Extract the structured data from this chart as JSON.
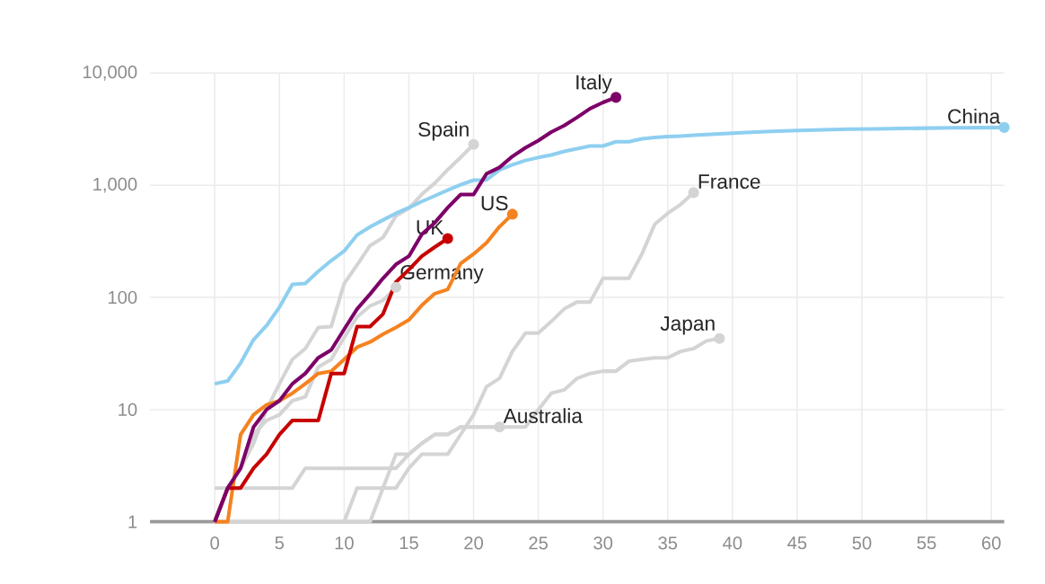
{
  "chart_data": {
    "type": "line",
    "log": "y",
    "grid": true,
    "xlim": [
      -5,
      61
    ],
    "ylim": [
      1,
      10000
    ],
    "xticks": [
      0,
      5,
      10,
      15,
      20,
      25,
      30,
      35,
      40,
      45,
      50,
      55,
      60
    ],
    "yticks": [
      1,
      10,
      100,
      {
        "value": 1000,
        "label": "1,000"
      },
      {
        "value": 10000,
        "label": "10,000"
      }
    ],
    "series": [
      {
        "name": "Spain",
        "color": "#d4d4d4",
        "x": [
          0,
          1,
          2,
          3,
          4,
          5,
          6,
          7,
          8,
          9,
          10,
          11,
          12,
          13,
          14,
          15,
          16,
          17,
          18,
          19,
          20
        ],
        "values": [
          1,
          2,
          3,
          5,
          10,
          17,
          28,
          35,
          54,
          55,
          133,
          195,
          289,
          342,
          533,
          623,
          830,
          1043,
          1375,
          1772,
          2311
        ]
      },
      {
        "name": "Germany",
        "color": "#d4d4d4",
        "x": [
          0,
          1,
          2,
          3,
          4,
          5,
          6,
          7,
          8,
          9,
          10,
          11,
          12,
          13,
          14
        ],
        "values": [
          2,
          2,
          3,
          6,
          8,
          9,
          12,
          13,
          24,
          28,
          44,
          67,
          84,
          94,
          123
        ]
      },
      {
        "name": "France",
        "color": "#d4d4d4",
        "x": [
          10,
          11,
          14,
          15,
          16,
          18,
          19,
          20,
          21,
          22,
          23,
          24,
          25,
          26,
          27,
          28,
          29,
          30,
          32,
          33,
          34,
          35,
          36,
          37
        ],
        "values": [
          1,
          2,
          2,
          3,
          4,
          4,
          6,
          9,
          16,
          19,
          33,
          48,
          48,
          61,
          79,
          91,
          91,
          148,
          148,
          243,
          450,
          562,
          674,
          860
        ]
      },
      {
        "name": "Japan",
        "color": "#d4d4d4",
        "x": [
          0,
          1,
          6,
          7,
          14,
          15,
          16,
          17,
          18,
          19,
          24,
          25,
          26,
          27,
          28,
          29,
          30,
          31,
          32,
          33,
          34,
          35,
          36,
          37,
          38,
          39
        ],
        "values": [
          1,
          2,
          2,
          3,
          3,
          4,
          5,
          6,
          6,
          7,
          7,
          10,
          14,
          15,
          19,
          21,
          22,
          22,
          27,
          28,
          29,
          29,
          33,
          35,
          41,
          43
        ]
      },
      {
        "name": "Australia",
        "color": "#d4d4d4",
        "x": [
          0,
          12,
          13,
          14,
          15,
          16,
          17,
          18,
          19,
          22
        ],
        "values": [
          1,
          1,
          2,
          4,
          4,
          5,
          6,
          6,
          7,
          7
        ]
      },
      {
        "name": "China",
        "color": "#8ecff0",
        "x": [
          0,
          1,
          2,
          3,
          4,
          5,
          6,
          7,
          8,
          9,
          10,
          11,
          12,
          13,
          14,
          15,
          16,
          17,
          18,
          19,
          20,
          21,
          22,
          23,
          24,
          25,
          26,
          27,
          28,
          29,
          30,
          31,
          32,
          33,
          34,
          35,
          36,
          37,
          38,
          39,
          41,
          43,
          45,
          47,
          49,
          51,
          53,
          55,
          57,
          59,
          61
        ],
        "values": [
          17,
          18,
          26,
          42,
          56,
          82,
          131,
          133,
          171,
          213,
          259,
          361,
          425,
          490,
          562,
          632,
          717,
          804,
          904,
          1011,
          1111,
          1117,
          1369,
          1521,
          1663,
          1766,
          1864,
          2003,
          2116,
          2238,
          2238,
          2443,
          2445,
          2595,
          2665,
          2717,
          2746,
          2790,
          2837,
          2872,
          2947,
          3015,
          3072,
          3123,
          3161,
          3180,
          3203,
          3230,
          3249,
          3259,
          3274
        ]
      },
      {
        "name": "US",
        "color": "#f5821f",
        "x": [
          0,
          1,
          2,
          3,
          4,
          5,
          6,
          7,
          8,
          9,
          10,
          11,
          12,
          13,
          14,
          15,
          16,
          17,
          18,
          19,
          20,
          21,
          22,
          23
        ],
        "values": [
          1,
          1,
          6,
          9,
          11,
          12,
          14,
          17,
          21,
          22,
          28,
          36,
          40,
          47,
          54,
          63,
          85,
          108,
          118,
          200,
          244,
          307,
          427,
          552
        ]
      },
      {
        "name": "UK",
        "color": "#c70000",
        "x": [
          0,
          1,
          2,
          3,
          4,
          5,
          6,
          7,
          8,
          9,
          10,
          11,
          12,
          13,
          14,
          15,
          16,
          17,
          18
        ],
        "values": [
          1,
          2,
          2,
          3,
          4,
          6,
          8,
          8,
          8,
          21,
          21,
          55,
          55,
          71,
          137,
          177,
          233,
          281,
          335
        ]
      },
      {
        "name": "Italy",
        "color": "#7d0068",
        "x": [
          0,
          1,
          2,
          3,
          4,
          5,
          6,
          7,
          8,
          9,
          10,
          11,
          12,
          13,
          14,
          15,
          16,
          17,
          18,
          19,
          20,
          21,
          22,
          23,
          24,
          25,
          26,
          27,
          28,
          29,
          30,
          31
        ],
        "values": [
          1,
          2,
          3,
          7,
          10,
          12,
          17,
          21,
          29,
          34,
          52,
          79,
          107,
          148,
          197,
          233,
          366,
          463,
          631,
          827,
          827,
          1266,
          1441,
          1809,
          2158,
          2503,
          2978,
          3405,
          4032,
          4825,
          5476,
          6077
        ]
      }
    ]
  }
}
